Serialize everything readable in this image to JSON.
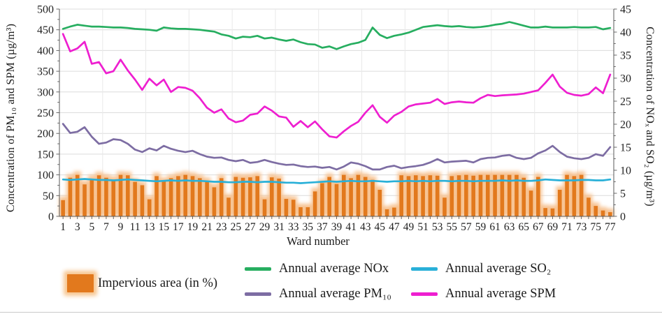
{
  "figure": {
    "x_axis": {
      "title": "Ward number",
      "tick_labels": [
        "1",
        "3",
        "5",
        "7",
        "9",
        "11",
        "13",
        "15",
        "17",
        "19",
        "21",
        "23",
        "25",
        "27",
        "29",
        "31",
        "33",
        "35",
        "37",
        "39",
        "41",
        "43",
        "45",
        "47",
        "49",
        "51",
        "53",
        "55",
        "57",
        "59",
        "61",
        "63",
        "65",
        "67",
        "69",
        "71",
        "73",
        "75",
        "77"
      ]
    },
    "y_left": {
      "title": "Concentration of PM₁₀ and SPM (µg/m³)",
      "min": 0,
      "max": 500,
      "step": 50,
      "tick_labels": [
        "0",
        "50",
        "100",
        "150",
        "200",
        "250",
        "300",
        "350",
        "400",
        "450",
        "500"
      ]
    },
    "y_right": {
      "title": "Concentration of NOₓ and SO₂ (µg/m³)",
      "min": 0,
      "max": 45,
      "step": 5,
      "tick_labels": [
        "0",
        "5",
        "10",
        "15",
        "20",
        "25",
        "30",
        "35",
        "40",
        "45"
      ]
    }
  },
  "colors": {
    "bar": "#e2791d",
    "bar_glow": "#f7c18e",
    "nox": "#27ae60",
    "pm10": "#7d6da3",
    "so2": "#29b0d8",
    "spm": "#ee1fd0",
    "gridline": "#dcdcdc",
    "gridline_vertical": "#e9e9e9",
    "axis": "#595959"
  },
  "legend": {
    "impervious": {
      "label": "Impervious area (in %)"
    },
    "nox": {
      "label": "Annual average NOx"
    },
    "pm10": {
      "label": "Annual average PM₁₀"
    },
    "so2": {
      "label": "Annual average SO₂"
    },
    "spm": {
      "label": "Annual average SPM"
    }
  },
  "chart_data": {
    "type": "combo bar+line, dual y-axis",
    "x_label": "Ward number",
    "x": [
      1,
      2,
      3,
      4,
      5,
      6,
      7,
      8,
      9,
      10,
      11,
      12,
      13,
      14,
      15,
      16,
      17,
      18,
      19,
      20,
      21,
      22,
      23,
      24,
      25,
      26,
      27,
      28,
      29,
      30,
      31,
      32,
      33,
      34,
      35,
      36,
      37,
      38,
      39,
      40,
      41,
      42,
      43,
      44,
      45,
      46,
      47,
      48,
      49,
      50,
      51,
      52,
      53,
      54,
      55,
      56,
      57,
      58,
      59,
      60,
      61,
      62,
      63,
      64,
      65,
      66,
      67,
      68,
      69,
      70,
      71,
      72,
      73,
      74,
      75,
      76,
      77
    ],
    "y_left_range": [
      0,
      500
    ],
    "y_right_range": [
      0,
      45
    ],
    "grid": "horizontal major, faint vertical",
    "legend_position": "bottom",
    "series": [
      {
        "name": "Impervious area (in %)",
        "type": "bar",
        "axis": "left",
        "color": "#e2791d",
        "values": [
          39,
          93,
          100,
          77,
          91,
          99,
          93,
          88,
          100,
          99,
          83,
          75,
          41,
          97,
          85,
          92,
          97,
          100,
          97,
          92,
          85,
          70,
          92,
          45,
          95,
          93,
          94,
          97,
          41,
          94,
          91,
          42,
          40,
          22,
          22,
          60,
          80,
          95,
          78,
          100,
          92,
          100,
          95,
          88,
          64,
          17,
          21,
          99,
          97,
          99,
          97,
          99,
          98,
          45,
          97,
          99,
          100,
          98,
          100,
          100,
          100,
          100,
          100,
          100,
          93,
          62,
          95,
          20,
          19,
          64,
          100,
          97,
          100,
          45,
          25,
          14,
          10
        ]
      },
      {
        "name": "Annual average NOx",
        "type": "line",
        "axis": "right",
        "color": "#27ae60",
        "values": [
          40.7,
          41.2,
          41.6,
          41.4,
          41.2,
          41.2,
          41.1,
          41.0,
          41.0,
          40.9,
          40.7,
          40.6,
          40.5,
          40.3,
          41.0,
          40.8,
          40.7,
          40.7,
          40.6,
          40.5,
          40.3,
          40.1,
          39.5,
          39.2,
          38.6,
          39.0,
          38.9,
          39.2,
          38.6,
          38.8,
          38.4,
          38.1,
          38.4,
          37.8,
          37.4,
          37.3,
          36.6,
          36.9,
          36.3,
          36.9,
          37.4,
          37.7,
          38.3,
          41.0,
          39.4,
          38.7,
          39.2,
          39.5,
          39.9,
          40.5,
          41.1,
          41.3,
          41.5,
          41.3,
          41.2,
          41.3,
          41.1,
          41.0,
          41.1,
          41.3,
          41.6,
          41.8,
          42.2,
          41.8,
          41.4,
          41.0,
          41.0,
          41.2,
          41.0,
          41.0,
          41.0,
          41.1,
          41.0,
          41.0,
          41.1,
          40.6,
          40.9
        ]
      },
      {
        "name": "Annual average PM₁₀",
        "type": "line",
        "axis": "left",
        "color": "#7d6da3",
        "values": [
          223,
          201,
          204,
          215,
          192,
          175,
          178,
          186,
          184,
          175,
          161,
          155,
          164,
          159,
          170,
          163,
          158,
          155,
          158,
          150,
          144,
          141,
          142,
          136,
          133,
          136,
          129,
          131,
          136,
          131,
          127,
          124,
          125,
          121,
          119,
          120,
          117,
          119,
          113,
          120,
          130,
          127,
          121,
          113,
          113,
          119,
          122,
          116,
          119,
          121,
          124,
          130,
          138,
          130,
          132,
          133,
          134,
          130,
          138,
          141,
          142,
          146,
          148,
          141,
          138,
          141,
          152,
          159,
          170,
          155,
          144,
          140,
          138,
          141,
          150,
          146,
          167
        ]
      },
      {
        "name": "Annual average SO₂",
        "type": "line",
        "axis": "right",
        "color": "#29b0d8",
        "values": [
          8.0,
          7.9,
          8.0,
          8.1,
          8.0,
          7.9,
          7.9,
          7.8,
          7.9,
          8.0,
          7.9,
          7.8,
          7.7,
          7.6,
          7.7,
          7.8,
          7.7,
          7.8,
          7.7,
          7.7,
          7.6,
          7.5,
          7.5,
          7.4,
          7.4,
          7.5,
          7.5,
          7.4,
          7.5,
          7.5,
          7.4,
          7.3,
          7.3,
          7.2,
          7.3,
          7.4,
          7.5,
          7.6,
          7.5,
          7.6,
          7.7,
          7.6,
          7.6,
          7.7,
          7.6,
          7.5,
          7.6,
          7.6,
          7.7,
          7.6,
          7.7,
          7.6,
          7.7,
          7.7,
          7.6,
          7.7,
          7.7,
          7.6,
          7.7,
          7.7,
          7.7,
          7.8,
          7.7,
          7.8,
          7.7,
          7.7,
          7.8,
          8.0,
          7.9,
          7.8,
          7.8,
          7.8,
          7.9,
          7.9,
          7.8,
          7.8,
          8.0
        ]
      },
      {
        "name": "Annual average SPM",
        "type": "line",
        "axis": "left",
        "color": "#ee1fd0",
        "values": [
          440,
          398,
          405,
          421,
          368,
          372,
          345,
          350,
          378,
          352,
          330,
          305,
          332,
          316,
          330,
          300,
          312,
          310,
          303,
          285,
          262,
          250,
          258,
          236,
          227,
          231,
          245,
          248,
          265,
          255,
          241,
          238,
          216,
          230,
          215,
          229,
          210,
          193,
          190,
          205,
          218,
          228,
          250,
          268,
          240,
          226,
          243,
          252,
          265,
          270,
          272,
          274,
          283,
          271,
          275,
          277,
          275,
          274,
          285,
          293,
          290,
          292,
          293,
          294,
          296,
          300,
          304,
          322,
          342,
          313,
          298,
          293,
          291,
          295,
          311,
          297,
          342
        ]
      }
    ]
  }
}
